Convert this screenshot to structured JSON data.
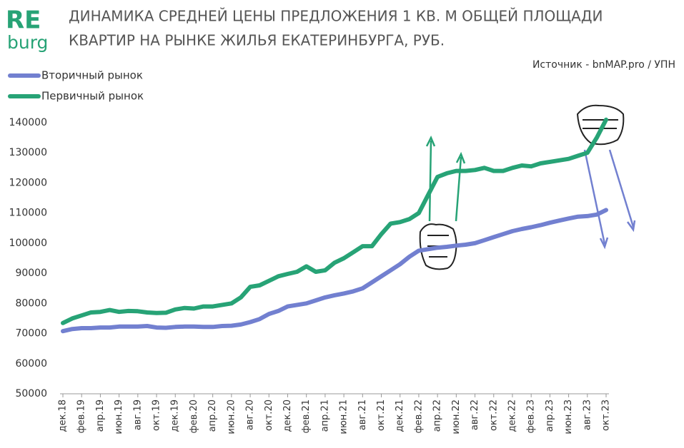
{
  "logo": {
    "top": "RE",
    "bottom": "burg"
  },
  "chart_data": {
    "type": "line",
    "title": [
      "ДИНАМИКА СРЕДНЕЙ ЦЕНЫ ПРЕДЛОЖЕНИЯ 1 КВ. М ОБЩЕЙ ПЛОЩАДИ",
      "КВАРТИР НА РЫНКЕ  ЖИЛЬЯ ЕКАТЕРИНБУРГА,  РУБ."
    ],
    "source": "Источник - bnMAP.pro / УПН",
    "categories": [
      "дек.18",
      null,
      "фев.19",
      null,
      "апр.19",
      null,
      "июн.19",
      null,
      "авг.19",
      null,
      "окт.19",
      null,
      "дек.19",
      null,
      "фев.20",
      null,
      "апр.20",
      null,
      "июн.20",
      null,
      "авг.20",
      null,
      "окт.20",
      null,
      "дек.20",
      null,
      "фев.21",
      null,
      "апр.21",
      null,
      "июн.21",
      null,
      "авг.21",
      null,
      "окт.21",
      null,
      "дек.21",
      null,
      "фев.22",
      null,
      "апр.22",
      null,
      "июн.22",
      null,
      "авг.22",
      null,
      "окт.22",
      null,
      "дек.22",
      null,
      "фев.23",
      null,
      "апр.23",
      null,
      "июн.23",
      null,
      "авг.23",
      null,
      "окт.23"
    ],
    "series": [
      {
        "name": "Вторичный рынок",
        "color": "#7280d0",
        "values": [
          70800,
          71500,
          71800,
          71800,
          72000,
          72000,
          72300,
          72300,
          72300,
          72500,
          72000,
          71900,
          72200,
          72300,
          72300,
          72200,
          72200,
          72500,
          72600,
          73000,
          73800,
          74800,
          76500,
          77500,
          79000,
          79500,
          80000,
          81000,
          82000,
          82700,
          83300,
          84000,
          85000,
          87000,
          89000,
          91000,
          93000,
          95500,
          97500,
          98000,
          98500,
          98800,
          99200,
          99500,
          100000,
          101000,
          102000,
          103000,
          104000,
          104700,
          105300,
          106000,
          106800,
          107500,
          108200,
          108800,
          109000,
          109500,
          111000
        ]
      },
      {
        "name": "Первичный рынок",
        "color": "#27a376",
        "values": [
          73500,
          75000,
          76000,
          77000,
          77200,
          77800,
          77200,
          77500,
          77400,
          77000,
          76800,
          76900,
          78000,
          78500,
          78300,
          79000,
          79000,
          79500,
          80000,
          82000,
          85500,
          86000,
          87500,
          89000,
          89800,
          90500,
          92300,
          90500,
          91000,
          93500,
          95000,
          97000,
          99000,
          99000,
          103000,
          106500,
          107000,
          108000,
          110000,
          116000,
          122000,
          123200,
          124000,
          124000,
          124300,
          125000,
          124000,
          124000,
          125000,
          125800,
          125500,
          126500,
          127000,
          127500,
          128000,
          129000,
          130000,
          135000,
          141000
        ]
      }
    ],
    "ylim": [
      50000,
      140000
    ],
    "yticks": [
      50000,
      60000,
      70000,
      80000,
      90000,
      100000,
      110000,
      120000,
      130000,
      140000
    ]
  }
}
